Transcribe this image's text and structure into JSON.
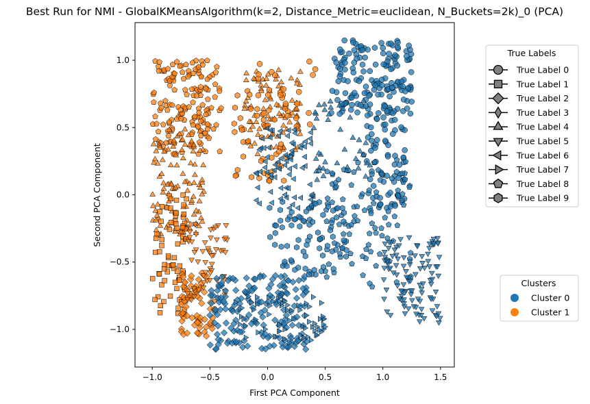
{
  "chart_data": {
    "type": "scatter",
    "title": "Best Run for NMI - GlobalKMeansAlgorithm(k=2, Distance_Metric=euclidean, N_Buckets=2k)_0 (PCA)",
    "xlabel": "First PCA Component",
    "ylabel": "Second PCA Component",
    "xlim": [
      -1.15,
      1.62
    ],
    "ylim": [
      -1.28,
      1.28
    ],
    "xticks": [
      {
        "value": -1.0,
        "label": "−1.0"
      },
      {
        "value": -0.5,
        "label": "−0.5"
      },
      {
        "value": 0.0,
        "label": "0.0"
      },
      {
        "value": 0.5,
        "label": "0.5"
      },
      {
        "value": 1.0,
        "label": "1.0"
      },
      {
        "value": 1.5,
        "label": "1.5"
      }
    ],
    "yticks": [
      {
        "value": -1.0,
        "label": "−1.0"
      },
      {
        "value": -0.5,
        "label": "−0.5"
      },
      {
        "value": 0.0,
        "label": "0.0"
      },
      {
        "value": 0.5,
        "label": "0.5"
      },
      {
        "value": 1.0,
        "label": "1.0"
      }
    ],
    "grid": false,
    "clusters": [
      {
        "name": "Cluster 0",
        "color": "#1f77b4"
      },
      {
        "name": "Cluster 1",
        "color": "#ff7f0e"
      }
    ],
    "true_labels": [
      {
        "name": "True Label 0",
        "marker": "circle"
      },
      {
        "name": "True Label 1",
        "marker": "square"
      },
      {
        "name": "True Label 2",
        "marker": "diamond"
      },
      {
        "name": "True Label 3",
        "marker": "thin-diamond"
      },
      {
        "name": "True Label 4",
        "marker": "triangle-up"
      },
      {
        "name": "True Label 5",
        "marker": "triangle-down"
      },
      {
        "name": "True Label 6",
        "marker": "triangle-left"
      },
      {
        "name": "True Label 7",
        "marker": "triangle-right"
      },
      {
        "name": "True Label 8",
        "marker": "pentagon"
      },
      {
        "name": "True Label 9",
        "marker": "hexagon"
      }
    ],
    "legend_true_labels": {
      "title": "True Labels",
      "placement": "right, upper"
    },
    "legend_clusters": {
      "title": "Clusters",
      "placement": "right, lower"
    },
    "series": [
      {
        "cluster": 1,
        "label": 8,
        "x_range": [
          -1.0,
          -0.4
        ],
        "y_range": [
          0.3,
          1.0
        ],
        "n": 160
      },
      {
        "cluster": 1,
        "label": 4,
        "x_range": [
          -1.0,
          -0.55
        ],
        "y_range": [
          -0.3,
          0.5
        ],
        "n": 110
      },
      {
        "cluster": 1,
        "label": 1,
        "x_range": [
          -1.0,
          -0.7
        ],
        "y_range": [
          -0.9,
          0.0
        ],
        "n": 80
      },
      {
        "cluster": 1,
        "label": 2,
        "x_range": [
          -0.75,
          -0.45
        ],
        "y_range": [
          -1.05,
          -0.55
        ],
        "n": 70
      },
      {
        "cluster": 1,
        "label": 5,
        "x_range": [
          -0.7,
          -0.35
        ],
        "y_range": [
          -0.8,
          -0.2
        ],
        "n": 60
      },
      {
        "cluster": 1,
        "label": 4,
        "x_range": [
          -0.2,
          0.3
        ],
        "y_range": [
          0.3,
          0.95
        ],
        "n": 90
      },
      {
        "cluster": 1,
        "label": 9,
        "x_range": [
          -0.3,
          0.2
        ],
        "y_range": [
          0.1,
          0.8
        ],
        "n": 50
      },
      {
        "cluster": 1,
        "label": 0,
        "x_range": [
          -0.1,
          0.45
        ],
        "y_range": [
          0.5,
          1.0
        ],
        "n": 25
      },
      {
        "cluster": 0,
        "label": 0,
        "x_range": [
          0.55,
          1.25
        ],
        "y_range": [
          0.6,
          1.15
        ],
        "n": 170
      },
      {
        "cluster": 0,
        "label": 0,
        "x_range": [
          0.85,
          1.2
        ],
        "y_range": [
          -0.1,
          0.6
        ],
        "n": 70
      },
      {
        "cluster": 0,
        "label": 8,
        "x_range": [
          0.5,
          1.25
        ],
        "y_range": [
          -0.7,
          0.3
        ],
        "n": 110
      },
      {
        "cluster": 0,
        "label": 2,
        "x_range": [
          -0.5,
          0.35
        ],
        "y_range": [
          -1.15,
          -0.6
        ],
        "n": 180
      },
      {
        "cluster": 0,
        "label": 7,
        "x_range": [
          -0.3,
          0.5
        ],
        "y_range": [
          -1.1,
          -0.75
        ],
        "n": 70
      },
      {
        "cluster": 0,
        "label": 5,
        "x_range": [
          1.0,
          1.5
        ],
        "y_range": [
          -0.95,
          -0.3
        ],
        "n": 110
      },
      {
        "cluster": 0,
        "label": 6,
        "x_range": [
          -0.1,
          0.4
        ],
        "y_range": [
          -0.1,
          0.5
        ],
        "n": 80
      },
      {
        "cluster": 0,
        "label": 9,
        "x_range": [
          0.0,
          0.7
        ],
        "y_range": [
          -0.6,
          -0.05
        ],
        "n": 80
      },
      {
        "cluster": 0,
        "label": 4,
        "x_range": [
          0.4,
          0.9
        ],
        "y_range": [
          0.1,
          0.7
        ],
        "n": 40
      }
    ]
  }
}
